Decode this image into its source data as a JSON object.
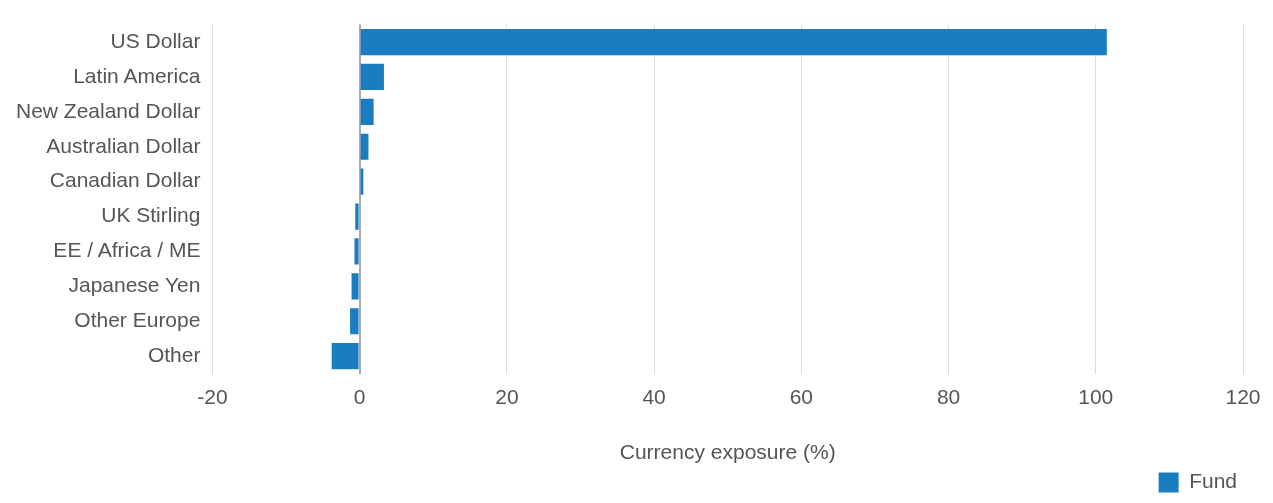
{
  "chart_data": {
    "type": "bar",
    "orientation": "horizontal",
    "xlabel": "Currency exposure (%)",
    "categories": [
      "US Dollar",
      "Latin America",
      "New Zealand Dollar",
      "Australian Dollar",
      "Canadian Dollar",
      "UK Stirling",
      "EE / Africa / ME",
      "Japanese Yen",
      "Other Europe",
      "Other"
    ],
    "series": [
      {
        "name": "Fund",
        "color": "#1a7dc2",
        "values": [
          101.5,
          3.3,
          1.9,
          1.2,
          0.5,
          -0.6,
          -0.7,
          -1.1,
          -1.3,
          -3.8
        ]
      }
    ],
    "xlim": [
      -20,
      120
    ],
    "xticks": [
      -20,
      0,
      20,
      40,
      60,
      80,
      100,
      120
    ],
    "grid": "x",
    "legend": "bottom right"
  }
}
